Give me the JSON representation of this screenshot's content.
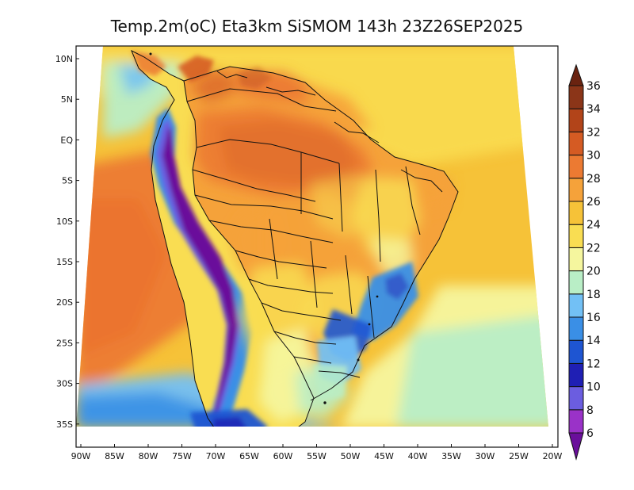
{
  "title": "Temp.2m(oC) Eta3km SiSMOM 143h 23Z26SEP2025",
  "map": {
    "lat_labels": [
      "10N",
      "5N",
      "EQ",
      "5S",
      "10S",
      "15S",
      "20S",
      "25S",
      "30S",
      "35S"
    ],
    "lon_labels": [
      "90W",
      "85W",
      "80W",
      "75W",
      "70W",
      "65W",
      "60W",
      "55W",
      "50W",
      "45W",
      "40W",
      "35W",
      "30W",
      "25W",
      "20W"
    ]
  },
  "colorbar": {
    "labels": [
      "6",
      "8",
      "10",
      "12",
      "14",
      "16",
      "18",
      "20",
      "22",
      "24",
      "26",
      "28",
      "30",
      "32",
      "34",
      "36"
    ],
    "colors": [
      "#6a0f9b",
      "#9a32c8",
      "#6b5de0",
      "#1f1fb4",
      "#1e55d2",
      "#3a8fe6",
      "#72c0f5",
      "#b9eec6",
      "#f5f69e",
      "#f9dd52",
      "#f6c238",
      "#f5a23a",
      "#ec7a32",
      "#d55b23",
      "#b24419",
      "#8b3518",
      "#6a2310"
    ]
  }
}
